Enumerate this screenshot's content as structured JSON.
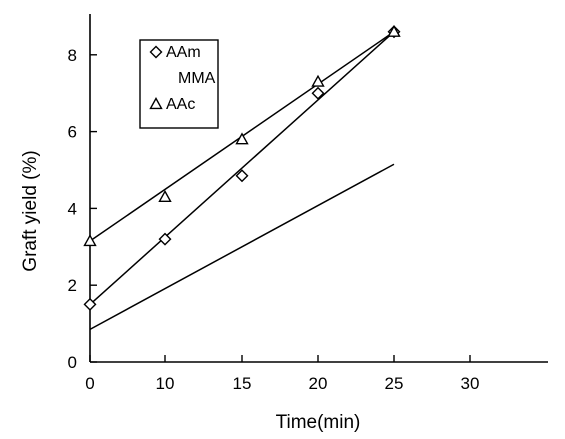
{
  "chart_data": {
    "type": "line",
    "title": "",
    "xlabel": "Time(min)",
    "ylabel": "Graft yield (%)",
    "xlim": [
      0,
      30
    ],
    "ylim": [
      0,
      9.2
    ],
    "xticks": [
      "0",
      "10",
      "15",
      "20",
      "25",
      "30"
    ],
    "yticks": [
      0,
      2,
      4,
      6,
      8
    ],
    "grid": false,
    "legend_position": "top-left",
    "x_categories": [
      "0",
      "10",
      "15",
      "20",
      "25"
    ],
    "series": [
      {
        "name": "AAm",
        "marker": "diamond",
        "color": "#000000",
        "x": [
          "0",
          "10",
          "15",
          "20",
          "25"
        ],
        "points": [
          1.5,
          3.2,
          4.85,
          7.0,
          8.6
        ],
        "fit": {
          "y_start": 1.5,
          "y_end": 8.6
        }
      },
      {
        "name": "MMA",
        "marker": "none",
        "color": "#000000",
        "x": [
          "0",
          "10",
          "15",
          "20",
          "25"
        ],
        "points": [],
        "fit": {
          "y_start": 0.85,
          "y_end": 5.15
        }
      },
      {
        "name": "AAc",
        "marker": "triangle",
        "color": "#000000",
        "x": [
          "0",
          "10",
          "15",
          "20",
          "25"
        ],
        "points": [
          3.15,
          4.3,
          5.8,
          7.3,
          8.6
        ],
        "fit": {
          "y_start": 3.15,
          "y_end": 8.6
        }
      }
    ]
  }
}
